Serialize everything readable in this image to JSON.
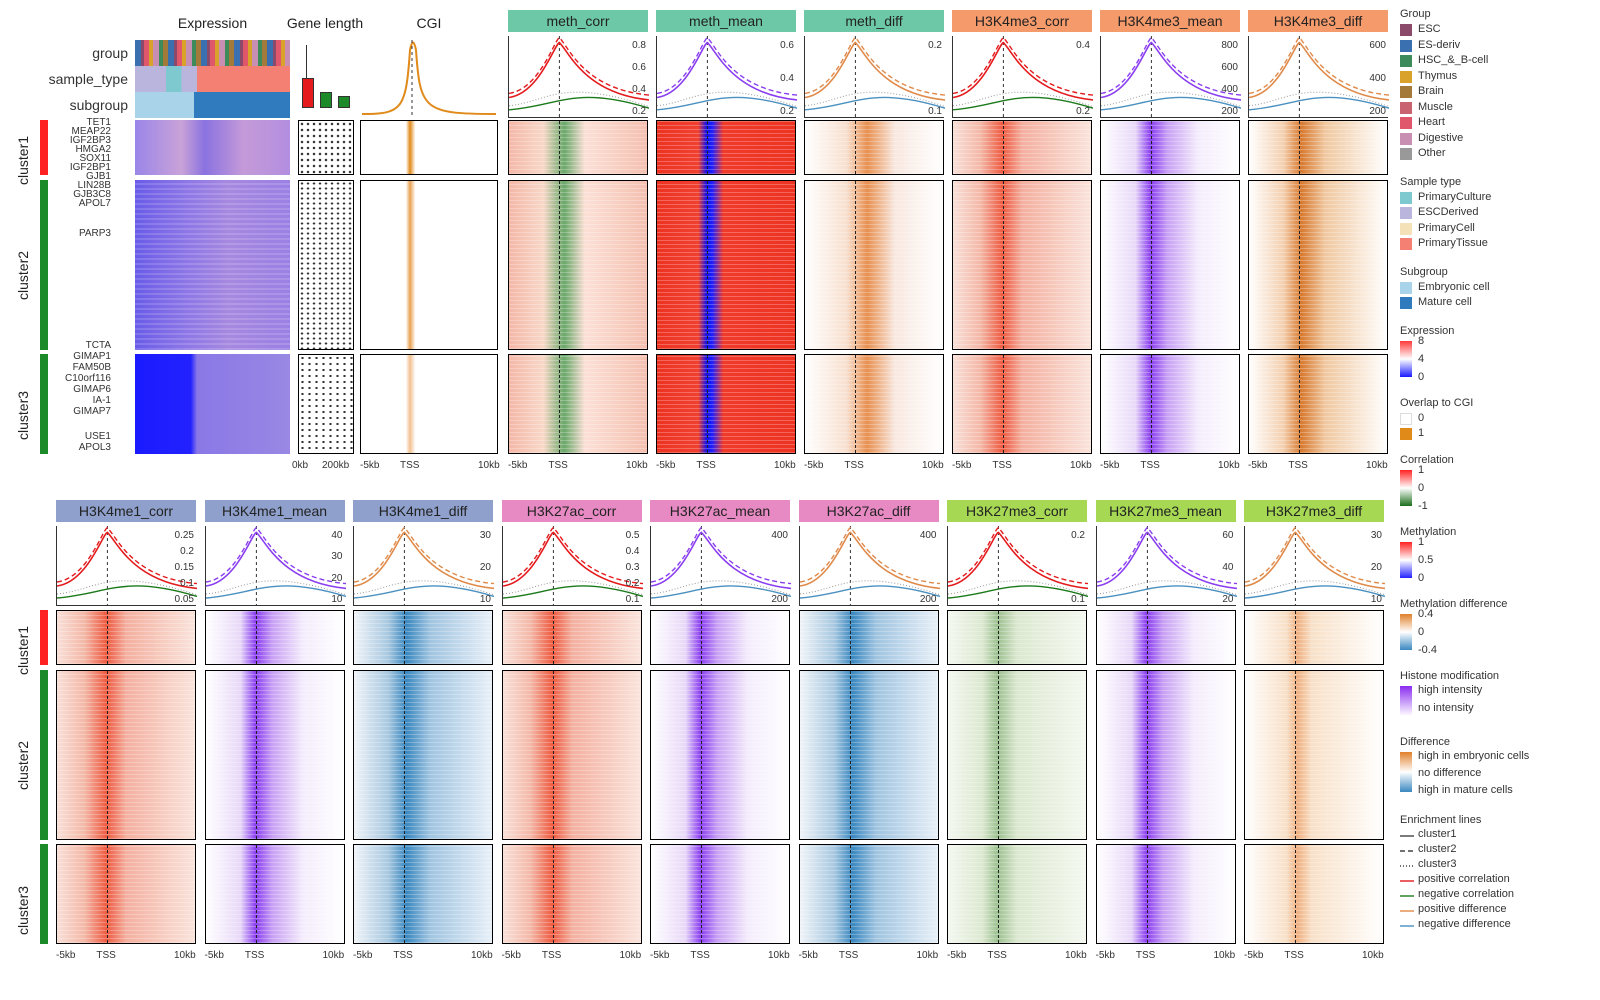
{
  "top_labels": {
    "expression": "Expression",
    "gene_length": "Gene length",
    "cgi": "CGI"
  },
  "annotations": [
    "group",
    "sample_type",
    "subgroup"
  ],
  "clusters": [
    "cluster1",
    "cluster2",
    "cluster3"
  ],
  "genes": {
    "c1": [
      "TET1",
      "MEAP22",
      "IGF2BP3",
      "HMGA2",
      "SOX11",
      "IGF2BP1",
      "GJB1",
      "LIN28B",
      "GJB3C8",
      "APOL7"
    ],
    "c2": [
      "PARP3"
    ],
    "c3": [
      "TCTA",
      "GIMAP1",
      "FAM50B",
      "C10orf116",
      "GIMAP6",
      "IA-1",
      "GIMAP7",
      "USE1",
      "APOL3"
    ]
  },
  "xaxis": {
    "left": "-5kb",
    "mid": "TSS",
    "right": "10kb"
  },
  "genelength_axis": {
    "a": "0kb",
    "b": "200kb"
  },
  "top_row": [
    {
      "name": "meth_corr",
      "color": "#6dc8a7",
      "ticks": [
        "0.8",
        "0.6",
        "0.4",
        "0.2"
      ]
    },
    {
      "name": "meth_mean",
      "color": "#6dc8a7",
      "ticks": [
        "0.6",
        "0.4",
        "0.2"
      ]
    },
    {
      "name": "meth_diff",
      "color": "#6dc8a7",
      "ticks": [
        "0.2",
        "0.1"
      ]
    },
    {
      "name": "H3K4me3_corr",
      "color": "#f59a6b",
      "ticks": [
        "0.4",
        "0.2"
      ]
    },
    {
      "name": "H3K4me3_mean",
      "color": "#f59a6b",
      "ticks": [
        "800",
        "600",
        "400",
        "200"
      ]
    },
    {
      "name": "H3K4me3_diff",
      "color": "#f59a6b",
      "ticks": [
        "600",
        "400",
        "200"
      ]
    }
  ],
  "bottom_row": [
    {
      "name": "H3K4me1_corr",
      "color": "#8ea0cb",
      "ticks": [
        "0.25",
        "0.2",
        "0.15",
        "0.1",
        "0.05"
      ]
    },
    {
      "name": "H3K4me1_mean",
      "color": "#8ea0cb",
      "ticks": [
        "40",
        "30",
        "20",
        "10"
      ]
    },
    {
      "name": "H3K4me1_diff",
      "color": "#8ea0cb",
      "ticks": [
        "30",
        "20",
        "10"
      ]
    },
    {
      "name": "H3K27ac_corr",
      "color": "#e78ac3",
      "ticks": [
        "0.5",
        "0.4",
        "0.3",
        "0.2",
        "0.1"
      ]
    },
    {
      "name": "H3K27ac_mean",
      "color": "#e78ac3",
      "ticks": [
        "400",
        "200"
      ]
    },
    {
      "name": "H3K27ac_diff",
      "color": "#e78ac3",
      "ticks": [
        "400",
        "200"
      ]
    },
    {
      "name": "H3K27me3_corr",
      "color": "#a6d854",
      "ticks": [
        "0.2",
        "0.1"
      ]
    },
    {
      "name": "H3K27me3_mean",
      "color": "#a6d854",
      "ticks": [
        "60",
        "40",
        "20"
      ]
    },
    {
      "name": "H3K27me3_diff",
      "color": "#a6d854",
      "ticks": [
        "30",
        "20",
        "10"
      ]
    }
  ],
  "legend": {
    "group_title": "Group",
    "group": [
      {
        "label": "ESC",
        "color": "#8c4a6a"
      },
      {
        "label": "ES-deriv",
        "color": "#3a6fb0"
      },
      {
        "label": "HSC_&_B-cell",
        "color": "#3d8a5a"
      },
      {
        "label": "Thymus",
        "color": "#d9a32b"
      },
      {
        "label": "Brain",
        "color": "#a47a3b"
      },
      {
        "label": "Muscle",
        "color": "#c9636f"
      },
      {
        "label": "Heart",
        "color": "#e0566b"
      },
      {
        "label": "Digestive",
        "color": "#c98fb3"
      },
      {
        "label": "Other",
        "color": "#999999"
      }
    ],
    "sample_title": "Sample type",
    "sample": [
      {
        "label": "PrimaryCulture",
        "color": "#7ec8cf"
      },
      {
        "label": "ESCDerived",
        "color": "#b9b5dd"
      },
      {
        "label": "PrimaryCell",
        "color": "#f4e1b8"
      },
      {
        "label": "PrimaryTissue",
        "color": "#f48073"
      }
    ],
    "subgroup_title": "Subgroup",
    "subgroup": [
      {
        "label": "Embryonic cell",
        "color": "#a9d3e8"
      },
      {
        "label": "Mature cell",
        "color": "#2f7bbd"
      }
    ],
    "expr_title": "Expression",
    "expr_ticks": [
      "8",
      "4",
      "0"
    ],
    "cgi_title": "Overlap to CGI",
    "cgi_ticks": [
      "0",
      "1"
    ],
    "corr_title": "Correlation",
    "corr_ticks": [
      "1",
      "0",
      "-1"
    ],
    "meth_title": "Methylation",
    "meth_ticks": [
      "1",
      "0.5",
      "0"
    ],
    "methdiff_title": "Methylation difference",
    "methdiff_ticks": [
      "0.4",
      "0",
      "-0.4"
    ],
    "hist_title": "Histone modification",
    "hist_items": [
      "high intensity",
      "no intensity"
    ],
    "diff_title": "Difference",
    "diff_items": [
      "high in embryonic cells",
      "no difference",
      "high in mature cells"
    ],
    "lines_title": "Enrichment lines",
    "lines": [
      {
        "label": "cluster1",
        "style": "solid",
        "color": "#444"
      },
      {
        "label": "cluster2",
        "style": "dashed",
        "color": "#444"
      },
      {
        "label": "cluster3",
        "style": "dotted",
        "color": "#444"
      },
      {
        "label": "positive correlation",
        "style": "solid",
        "color": "#e41a1c"
      },
      {
        "label": "negative correlation",
        "style": "solid",
        "color": "#1b7a1b"
      },
      {
        "label": "positive difference",
        "style": "solid",
        "color": "#e08a4a"
      },
      {
        "label": "negative difference",
        "style": "solid",
        "color": "#4a90c0"
      }
    ]
  }
}
